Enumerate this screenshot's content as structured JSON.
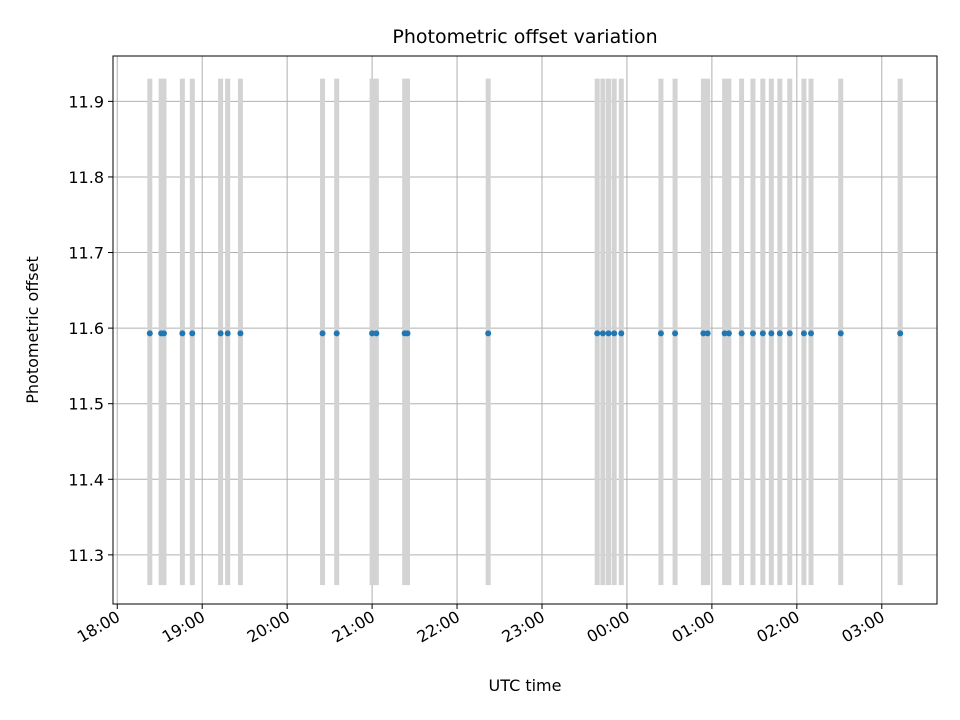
{
  "chart_data": {
    "type": "scatter",
    "title": "Photometric offset variation",
    "xlabel": "UTC time",
    "ylabel": "Photometric offset",
    "grid": true,
    "xlim": [
      "17:57",
      "03:39"
    ],
    "ylim": [
      11.235,
      11.96
    ],
    "x_ticks": [
      "18:00",
      "19:00",
      "20:00",
      "21:00",
      "22:00",
      "23:00",
      "00:00",
      "01:00",
      "02:00",
      "03:00"
    ],
    "y_ticks": [
      11.3,
      11.4,
      11.5,
      11.6,
      11.7,
      11.8,
      11.9
    ],
    "point_color": "#1f77b4",
    "span_color": "#d3d3d3",
    "span_range": [
      11.26,
      11.93
    ],
    "points": [
      {
        "x": "18:23",
        "y": 11.593
      },
      {
        "x": "18:31",
        "y": 11.593
      },
      {
        "x": "18:33",
        "y": 11.593
      },
      {
        "x": "18:46",
        "y": 11.593
      },
      {
        "x": "18:53",
        "y": 11.593
      },
      {
        "x": "19:13",
        "y": 11.593
      },
      {
        "x": "19:18",
        "y": 11.593
      },
      {
        "x": "19:27",
        "y": 11.593
      },
      {
        "x": "20:25",
        "y": 11.593
      },
      {
        "x": "20:35",
        "y": 11.593
      },
      {
        "x": "21:00",
        "y": 11.593
      },
      {
        "x": "21:03",
        "y": 11.593
      },
      {
        "x": "21:23",
        "y": 11.593
      },
      {
        "x": "21:25",
        "y": 11.593
      },
      {
        "x": "22:22",
        "y": 11.593
      },
      {
        "x": "23:39",
        "y": 11.593
      },
      {
        "x": "23:43",
        "y": 11.593
      },
      {
        "x": "23:47",
        "y": 11.593
      },
      {
        "x": "23:51",
        "y": 11.593
      },
      {
        "x": "23:56",
        "y": 11.593
      },
      {
        "x": "00:24",
        "y": 11.593
      },
      {
        "x": "00:34",
        "y": 11.593
      },
      {
        "x": "00:54",
        "y": 11.593
      },
      {
        "x": "00:57",
        "y": 11.593
      },
      {
        "x": "01:09",
        "y": 11.593
      },
      {
        "x": "01:12",
        "y": 11.593
      },
      {
        "x": "01:21",
        "y": 11.593
      },
      {
        "x": "01:29",
        "y": 11.593
      },
      {
        "x": "01:36",
        "y": 11.593
      },
      {
        "x": "01:42",
        "y": 11.593
      },
      {
        "x": "01:48",
        "y": 11.593
      },
      {
        "x": "01:55",
        "y": 11.593
      },
      {
        "x": "02:05",
        "y": 11.593
      },
      {
        "x": "02:10",
        "y": 11.593
      },
      {
        "x": "02:31",
        "y": 11.593
      },
      {
        "x": "03:13",
        "y": 11.593
      }
    ]
  }
}
